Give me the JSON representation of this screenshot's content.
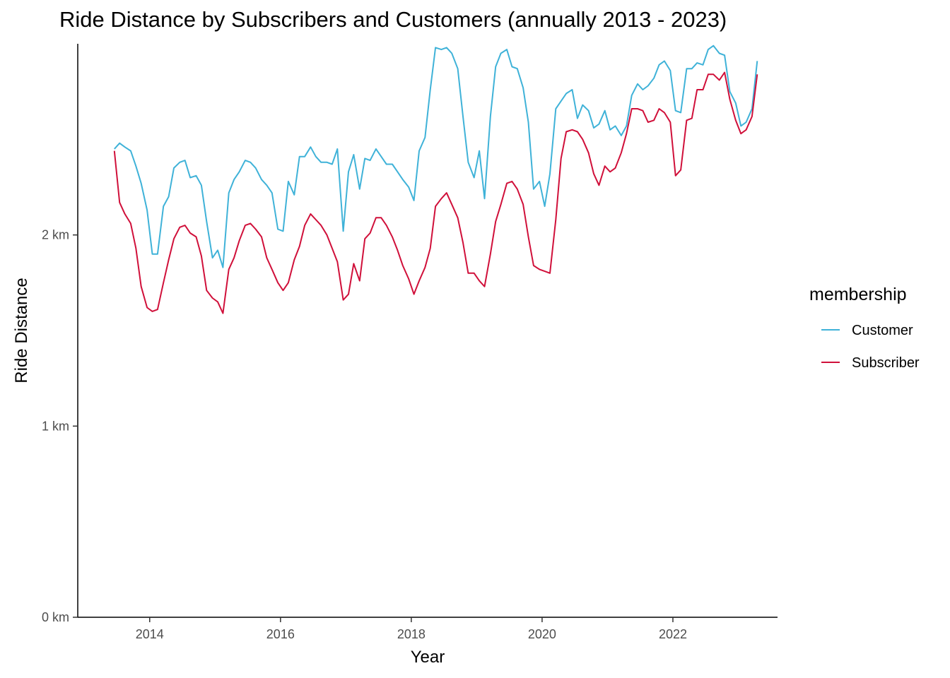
{
  "chart_data": {
    "type": "line",
    "title": "Ride Distance by Subscribers and Customers (annually 2013 - 2023)",
    "xlabel": "Year",
    "ylabel": "Ride Distance",
    "y_unit": "km",
    "xlim": [
      2012.9,
      2023.6
    ],
    "ylim": [
      0,
      3.0
    ],
    "x_ticks": [
      2014,
      2016,
      2018,
      2020,
      2022
    ],
    "x_tick_labels": [
      "2014",
      "2016",
      "2018",
      "2020",
      "2022"
    ],
    "y_ticks": [
      0,
      1,
      2
    ],
    "y_tick_labels": [
      "0 km",
      "1 km",
      "2 km"
    ],
    "grid": false,
    "legend": {
      "title": "membership",
      "position": "right"
    },
    "series": [
      {
        "name": "Customer",
        "color": "#3fb2d8",
        "points": [
          [
            2013.46,
            2.45
          ],
          [
            2013.54,
            2.48
          ],
          [
            2013.62,
            2.46
          ],
          [
            2013.71,
            2.44
          ],
          [
            2013.79,
            2.36
          ],
          [
            2013.87,
            2.27
          ],
          [
            2013.96,
            2.13
          ],
          [
            2014.04,
            1.9
          ],
          [
            2014.12,
            1.9
          ],
          [
            2014.21,
            2.15
          ],
          [
            2014.29,
            2.2
          ],
          [
            2014.37,
            2.35
          ],
          [
            2014.46,
            2.38
          ],
          [
            2014.54,
            2.39
          ],
          [
            2014.62,
            2.3
          ],
          [
            2014.71,
            2.31
          ],
          [
            2014.79,
            2.26
          ],
          [
            2014.87,
            2.07
          ],
          [
            2014.96,
            1.88
          ],
          [
            2015.04,
            1.92
          ],
          [
            2015.12,
            1.83
          ],
          [
            2015.21,
            2.22
          ],
          [
            2015.29,
            2.29
          ],
          [
            2015.37,
            2.33
          ],
          [
            2015.46,
            2.39
          ],
          [
            2015.54,
            2.38
          ],
          [
            2015.62,
            2.35
          ],
          [
            2015.71,
            2.29
          ],
          [
            2015.79,
            2.26
          ],
          [
            2015.87,
            2.22
          ],
          [
            2015.96,
            2.03
          ],
          [
            2016.04,
            2.02
          ],
          [
            2016.12,
            2.28
          ],
          [
            2016.21,
            2.21
          ],
          [
            2016.29,
            2.41
          ],
          [
            2016.37,
            2.41
          ],
          [
            2016.46,
            2.46
          ],
          [
            2016.54,
            2.41
          ],
          [
            2016.62,
            2.38
          ],
          [
            2016.71,
            2.38
          ],
          [
            2016.79,
            2.37
          ],
          [
            2016.87,
            2.45
          ],
          [
            2016.96,
            2.02
          ],
          [
            2017.04,
            2.33
          ],
          [
            2017.12,
            2.42
          ],
          [
            2017.21,
            2.24
          ],
          [
            2017.29,
            2.4
          ],
          [
            2017.37,
            2.39
          ],
          [
            2017.46,
            2.45
          ],
          [
            2017.54,
            2.41
          ],
          [
            2017.62,
            2.37
          ],
          [
            2017.71,
            2.37
          ],
          [
            2017.79,
            2.33
          ],
          [
            2017.87,
            2.29
          ],
          [
            2017.96,
            2.25
          ],
          [
            2018.04,
            2.18
          ],
          [
            2018.12,
            2.44
          ],
          [
            2018.21,
            2.51
          ],
          [
            2018.29,
            2.76
          ],
          [
            2018.37,
            2.98
          ],
          [
            2018.46,
            2.97
          ],
          [
            2018.54,
            2.98
          ],
          [
            2018.62,
            2.95
          ],
          [
            2018.71,
            2.87
          ],
          [
            2018.79,
            2.62
          ],
          [
            2018.87,
            2.38
          ],
          [
            2018.96,
            2.3
          ],
          [
            2019.04,
            2.44
          ],
          [
            2019.12,
            2.19
          ],
          [
            2019.21,
            2.62
          ],
          [
            2019.29,
            2.88
          ],
          [
            2019.37,
            2.95
          ],
          [
            2019.46,
            2.97
          ],
          [
            2019.54,
            2.88
          ],
          [
            2019.62,
            2.87
          ],
          [
            2019.71,
            2.77
          ],
          [
            2019.79,
            2.59
          ],
          [
            2019.87,
            2.24
          ],
          [
            2019.96,
            2.28
          ],
          [
            2020.04,
            2.15
          ],
          [
            2020.12,
            2.32
          ],
          [
            2020.21,
            2.66
          ],
          [
            2020.29,
            2.7
          ],
          [
            2020.37,
            2.74
          ],
          [
            2020.46,
            2.76
          ],
          [
            2020.54,
            2.61
          ],
          [
            2020.62,
            2.68
          ],
          [
            2020.71,
            2.65
          ],
          [
            2020.79,
            2.56
          ],
          [
            2020.87,
            2.58
          ],
          [
            2020.96,
            2.65
          ],
          [
            2021.04,
            2.55
          ],
          [
            2021.12,
            2.57
          ],
          [
            2021.21,
            2.52
          ],
          [
            2021.29,
            2.57
          ],
          [
            2021.37,
            2.73
          ],
          [
            2021.46,
            2.79
          ],
          [
            2021.54,
            2.76
          ],
          [
            2021.62,
            2.78
          ],
          [
            2021.71,
            2.82
          ],
          [
            2021.79,
            2.89
          ],
          [
            2021.87,
            2.91
          ],
          [
            2021.96,
            2.86
          ],
          [
            2022.04,
            2.65
          ],
          [
            2022.12,
            2.64
          ],
          [
            2022.21,
            2.87
          ],
          [
            2022.29,
            2.87
          ],
          [
            2022.37,
            2.9
          ],
          [
            2022.46,
            2.89
          ],
          [
            2022.54,
            2.97
          ],
          [
            2022.62,
            2.99
          ],
          [
            2022.71,
            2.95
          ],
          [
            2022.79,
            2.94
          ],
          [
            2022.87,
            2.75
          ],
          [
            2022.96,
            2.69
          ],
          [
            2023.04,
            2.57
          ],
          [
            2023.12,
            2.59
          ],
          [
            2023.21,
            2.66
          ],
          [
            2023.29,
            2.91
          ]
        ]
      },
      {
        "name": "Subscriber",
        "color": "#d0103a",
        "points": [
          [
            2013.46,
            2.44
          ],
          [
            2013.54,
            2.17
          ],
          [
            2013.62,
            2.11
          ],
          [
            2013.71,
            2.06
          ],
          [
            2013.79,
            1.93
          ],
          [
            2013.87,
            1.73
          ],
          [
            2013.96,
            1.62
          ],
          [
            2014.04,
            1.6
          ],
          [
            2014.12,
            1.61
          ],
          [
            2014.21,
            1.75
          ],
          [
            2014.29,
            1.87
          ],
          [
            2014.37,
            1.98
          ],
          [
            2014.46,
            2.04
          ],
          [
            2014.54,
            2.05
          ],
          [
            2014.62,
            2.01
          ],
          [
            2014.71,
            1.99
          ],
          [
            2014.79,
            1.89
          ],
          [
            2014.87,
            1.71
          ],
          [
            2014.96,
            1.67
          ],
          [
            2015.04,
            1.65
          ],
          [
            2015.12,
            1.59
          ],
          [
            2015.21,
            1.82
          ],
          [
            2015.29,
            1.88
          ],
          [
            2015.37,
            1.97
          ],
          [
            2015.46,
            2.05
          ],
          [
            2015.54,
            2.06
          ],
          [
            2015.62,
            2.03
          ],
          [
            2015.71,
            1.99
          ],
          [
            2015.79,
            1.88
          ],
          [
            2015.87,
            1.82
          ],
          [
            2015.96,
            1.75
          ],
          [
            2016.04,
            1.71
          ],
          [
            2016.12,
            1.75
          ],
          [
            2016.21,
            1.87
          ],
          [
            2016.29,
            1.94
          ],
          [
            2016.37,
            2.05
          ],
          [
            2016.46,
            2.11
          ],
          [
            2016.54,
            2.08
          ],
          [
            2016.62,
            2.05
          ],
          [
            2016.71,
            2.0
          ],
          [
            2016.79,
            1.93
          ],
          [
            2016.87,
            1.86
          ],
          [
            2016.96,
            1.66
          ],
          [
            2017.04,
            1.69
          ],
          [
            2017.12,
            1.85
          ],
          [
            2017.21,
            1.76
          ],
          [
            2017.29,
            1.98
          ],
          [
            2017.37,
            2.01
          ],
          [
            2017.46,
            2.09
          ],
          [
            2017.54,
            2.09
          ],
          [
            2017.62,
            2.05
          ],
          [
            2017.71,
            1.99
          ],
          [
            2017.79,
            1.92
          ],
          [
            2017.87,
            1.84
          ],
          [
            2017.96,
            1.77
          ],
          [
            2018.04,
            1.69
          ],
          [
            2018.12,
            1.76
          ],
          [
            2018.21,
            1.83
          ],
          [
            2018.29,
            1.93
          ],
          [
            2018.37,
            2.15
          ],
          [
            2018.46,
            2.19
          ],
          [
            2018.54,
            2.22
          ],
          [
            2018.62,
            2.16
          ],
          [
            2018.71,
            2.09
          ],
          [
            2018.79,
            1.96
          ],
          [
            2018.87,
            1.8
          ],
          [
            2018.96,
            1.8
          ],
          [
            2019.04,
            1.76
          ],
          [
            2019.12,
            1.73
          ],
          [
            2019.21,
            1.9
          ],
          [
            2019.29,
            2.07
          ],
          [
            2019.37,
            2.16
          ],
          [
            2019.46,
            2.27
          ],
          [
            2019.54,
            2.28
          ],
          [
            2019.62,
            2.24
          ],
          [
            2019.71,
            2.16
          ],
          [
            2019.79,
            1.99
          ],
          [
            2019.87,
            1.84
          ],
          [
            2019.96,
            1.82
          ],
          [
            2020.04,
            1.81
          ],
          [
            2020.12,
            1.8
          ],
          [
            2020.21,
            2.08
          ],
          [
            2020.29,
            2.4
          ],
          [
            2020.37,
            2.54
          ],
          [
            2020.46,
            2.55
          ],
          [
            2020.54,
            2.54
          ],
          [
            2020.62,
            2.5
          ],
          [
            2020.71,
            2.43
          ],
          [
            2020.79,
            2.32
          ],
          [
            2020.87,
            2.26
          ],
          [
            2020.96,
            2.36
          ],
          [
            2021.04,
            2.33
          ],
          [
            2021.12,
            2.35
          ],
          [
            2021.21,
            2.43
          ],
          [
            2021.29,
            2.53
          ],
          [
            2021.37,
            2.66
          ],
          [
            2021.46,
            2.66
          ],
          [
            2021.54,
            2.65
          ],
          [
            2021.62,
            2.59
          ],
          [
            2021.71,
            2.6
          ],
          [
            2021.79,
            2.66
          ],
          [
            2021.87,
            2.64
          ],
          [
            2021.96,
            2.59
          ],
          [
            2022.04,
            2.31
          ],
          [
            2022.12,
            2.34
          ],
          [
            2022.21,
            2.6
          ],
          [
            2022.29,
            2.61
          ],
          [
            2022.37,
            2.76
          ],
          [
            2022.46,
            2.76
          ],
          [
            2022.54,
            2.84
          ],
          [
            2022.62,
            2.84
          ],
          [
            2022.71,
            2.81
          ],
          [
            2022.79,
            2.85
          ],
          [
            2022.87,
            2.71
          ],
          [
            2022.96,
            2.6
          ],
          [
            2023.04,
            2.53
          ],
          [
            2023.12,
            2.55
          ],
          [
            2023.21,
            2.62
          ],
          [
            2023.29,
            2.84
          ]
        ]
      }
    ]
  }
}
